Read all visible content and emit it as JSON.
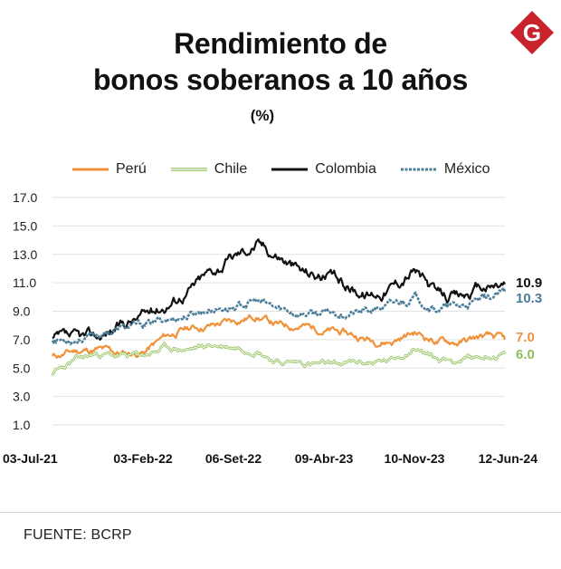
{
  "header": {
    "title_line1": "Rendimiento de",
    "title_line2": "bonos soberanos a 10 años",
    "unit": "(%)",
    "logo_letter": "G"
  },
  "colors": {
    "peru": "#f0923a",
    "chile": "#8fbf5a",
    "colombia": "#111111",
    "mexico": "#4b7d99",
    "logo": "#c8232c"
  },
  "legend": [
    {
      "name": "Perú",
      "color": "#f0923a",
      "style": "solid"
    },
    {
      "name": "Chile",
      "color": "#8fbf5a",
      "style": "double"
    },
    {
      "name": "Colombia",
      "color": "#111111",
      "style": "solid"
    },
    {
      "name": "México",
      "color": "#4b7d99",
      "style": "dashed"
    }
  ],
  "chart_data": {
    "type": "line",
    "title": "Rendimiento de bonos soberanos a 10 años",
    "ylabel": "(%)",
    "ylim": [
      1.0,
      17.0
    ],
    "yticks": [
      "17.0",
      "15.0",
      "13.0",
      "11.0",
      "9.0",
      "7.0",
      "5.0",
      "3.0",
      "1.0"
    ],
    "xtick_labels": [
      "03-Jul-21",
      "03-Feb-22",
      "06-Set-22",
      "09-Abr-23",
      "10-Nov-23",
      "12-Jun-24"
    ],
    "x": [
      0,
      0.05,
      0.1,
      0.15,
      0.2,
      0.25,
      0.3,
      0.35,
      0.4,
      0.45,
      0.5,
      0.55,
      0.6,
      0.65,
      0.7,
      0.75,
      0.8,
      0.85,
      0.9,
      0.95,
      1.0
    ],
    "series": [
      {
        "name": "Perú",
        "values": [
          5.8,
          6.2,
          6.3,
          6.0,
          6.1,
          7.2,
          7.8,
          8.0,
          8.3,
          8.7,
          8.0,
          8.0,
          7.7,
          7.4,
          7.0,
          6.9,
          7.5,
          6.9,
          6.8,
          7.2,
          7.0
        ],
        "end_label": "7.0"
      },
      {
        "name": "Chile",
        "values": [
          4.6,
          5.5,
          6.0,
          5.8,
          5.9,
          6.4,
          6.3,
          6.6,
          6.5,
          6.4,
          5.4,
          5.4,
          5.2,
          5.3,
          5.4,
          5.5,
          6.5,
          5.6,
          5.6,
          5.8,
          6.0
        ],
        "end_label": "6.0"
      },
      {
        "name": "Colombia",
        "values": [
          7.0,
          6.9,
          7.2,
          8.0,
          8.7,
          9.5,
          10.5,
          11.8,
          12.8,
          13.8,
          13.0,
          11.8,
          11.5,
          10.8,
          10.2,
          10.8,
          12.0,
          10.0,
          10.0,
          10.6,
          10.9
        ],
        "end_label": "10.9"
      },
      {
        "name": "México",
        "values": [
          7.0,
          7.1,
          7.3,
          7.8,
          8.0,
          8.4,
          8.7,
          9.2,
          9.3,
          9.7,
          9.1,
          8.9,
          8.8,
          8.9,
          9.0,
          9.4,
          10.0,
          9.2,
          9.3,
          9.7,
          10.3
        ],
        "end_label": "10.3"
      }
    ]
  },
  "footer": {
    "source": "FUENTE: BCRP"
  }
}
